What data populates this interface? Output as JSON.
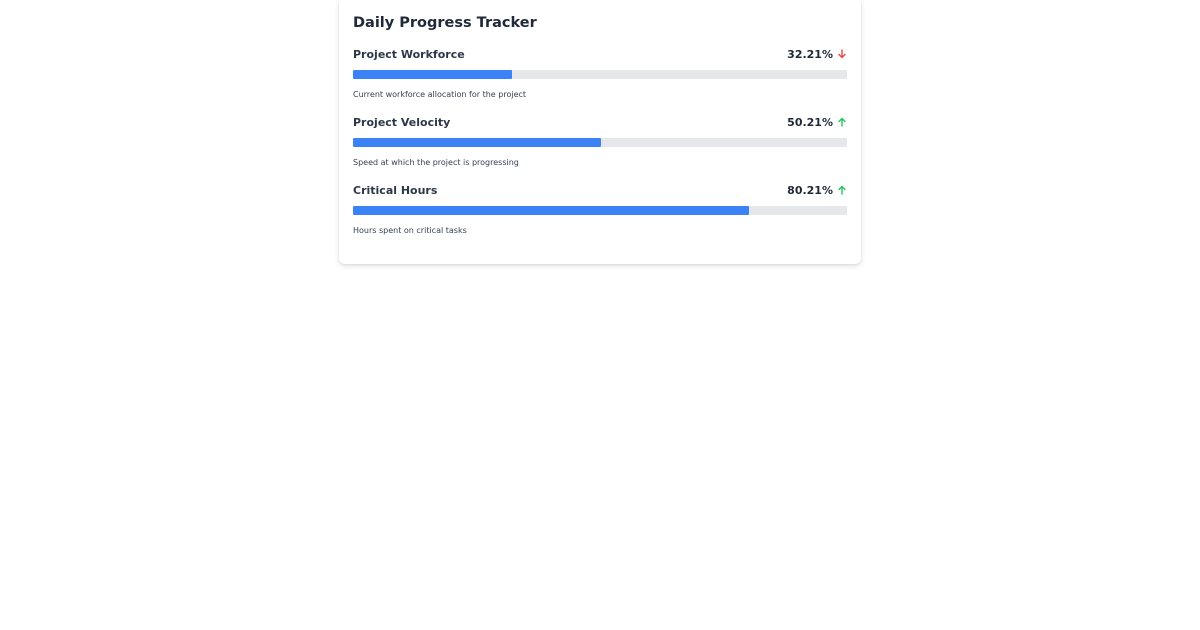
{
  "tracker": {
    "title": "Daily Progress Tracker",
    "accent_color": "#3b82f6",
    "metrics": [
      {
        "label": "Project Workforce",
        "value_text": "32.21%",
        "progress": 32.21,
        "trend": "down",
        "trend_icon": "arrow-down-icon",
        "trend_color": "#ef4444",
        "description": "Current workforce allocation for the project"
      },
      {
        "label": "Project Velocity",
        "value_text": "50.21%",
        "progress": 50.21,
        "trend": "up",
        "trend_icon": "arrow-up-icon",
        "trend_color": "#22c55e",
        "description": "Speed at which the project is progressing"
      },
      {
        "label": "Critical Hours",
        "value_text": "80.21%",
        "progress": 80.21,
        "trend": "up",
        "trend_icon": "arrow-up-icon",
        "trend_color": "#22c55e",
        "description": "Hours spent on critical tasks"
      }
    ]
  }
}
